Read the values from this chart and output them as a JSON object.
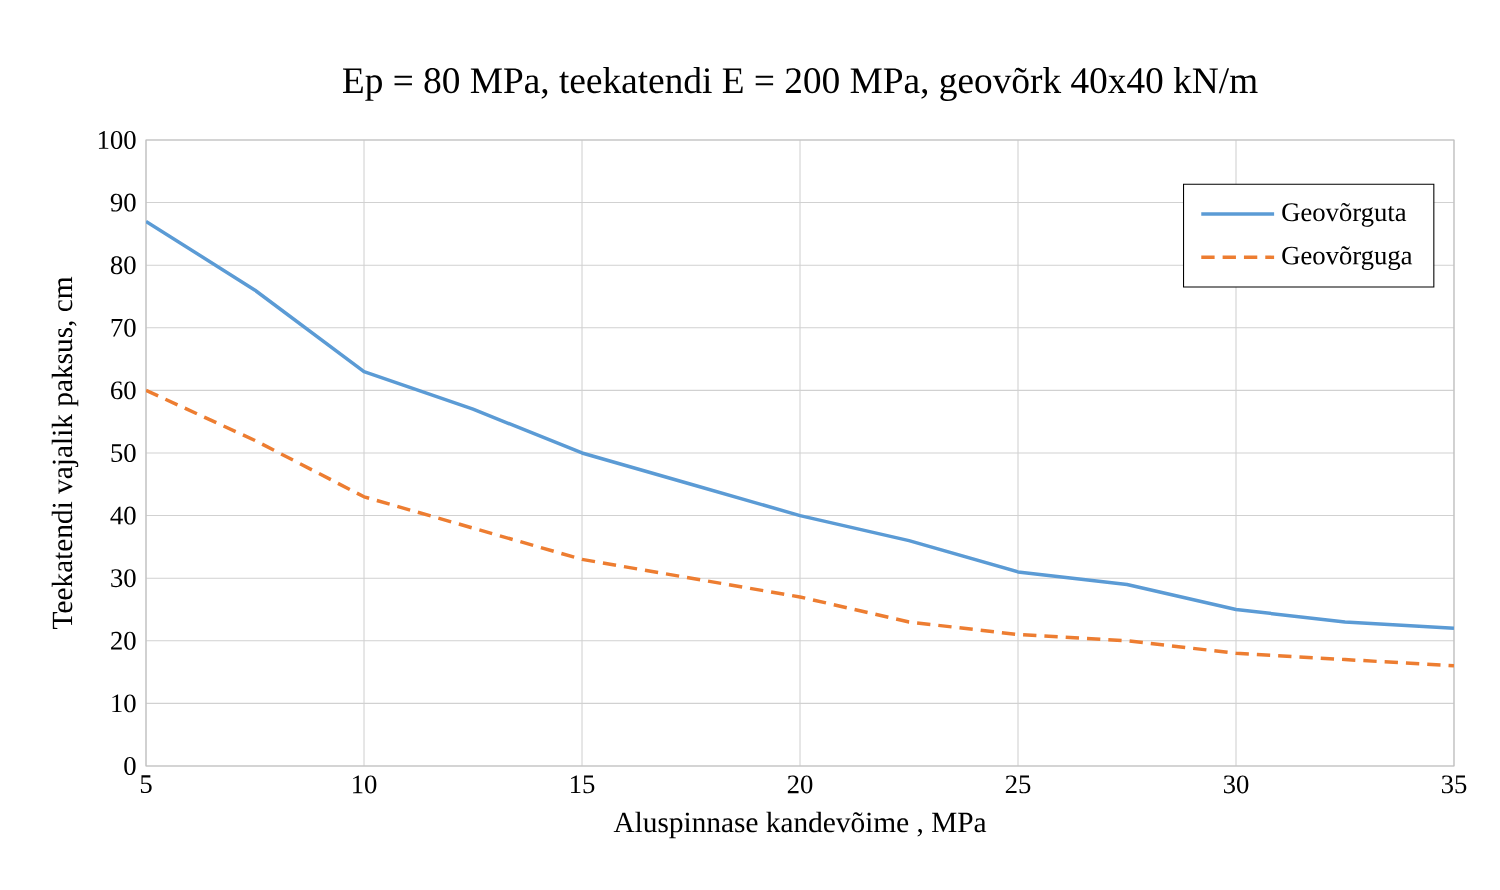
{
  "chart_data": {
    "type": "line",
    "title": "Ep = 80 MPa, teekatendi E = 200 MPa, geovõrk 40x40 kN/m",
    "xlabel": "Aluspinnase kandevõime , MPa",
    "ylabel": "Teekatendi vajalik paksus, cm",
    "x": [
      5,
      7.5,
      10,
      12.5,
      15,
      17.5,
      20,
      22.5,
      25,
      27.5,
      30,
      32.5,
      35
    ],
    "series": [
      {
        "name": "Geovõrguta",
        "color": "#5b9bd5",
        "line_style": "solid",
        "values": [
          87,
          76,
          63,
          57,
          50,
          45,
          40,
          36,
          31,
          29,
          25,
          23,
          22
        ]
      },
      {
        "name": "Geovõrguga",
        "color": "#ed7d31",
        "line_style": "dashed",
        "values": [
          60,
          52,
          43,
          38,
          33,
          30,
          27,
          23,
          21,
          20,
          18,
          17,
          16
        ]
      }
    ],
    "xlim": [
      5,
      35
    ],
    "xticks": [
      5,
      10,
      15,
      20,
      25,
      30,
      35
    ],
    "ylim": [
      0,
      100
    ],
    "yticks": [
      0,
      10,
      20,
      30,
      40,
      50,
      60,
      70,
      80,
      90,
      100
    ],
    "grid": true,
    "legend": "top right",
    "marker": "none"
  }
}
